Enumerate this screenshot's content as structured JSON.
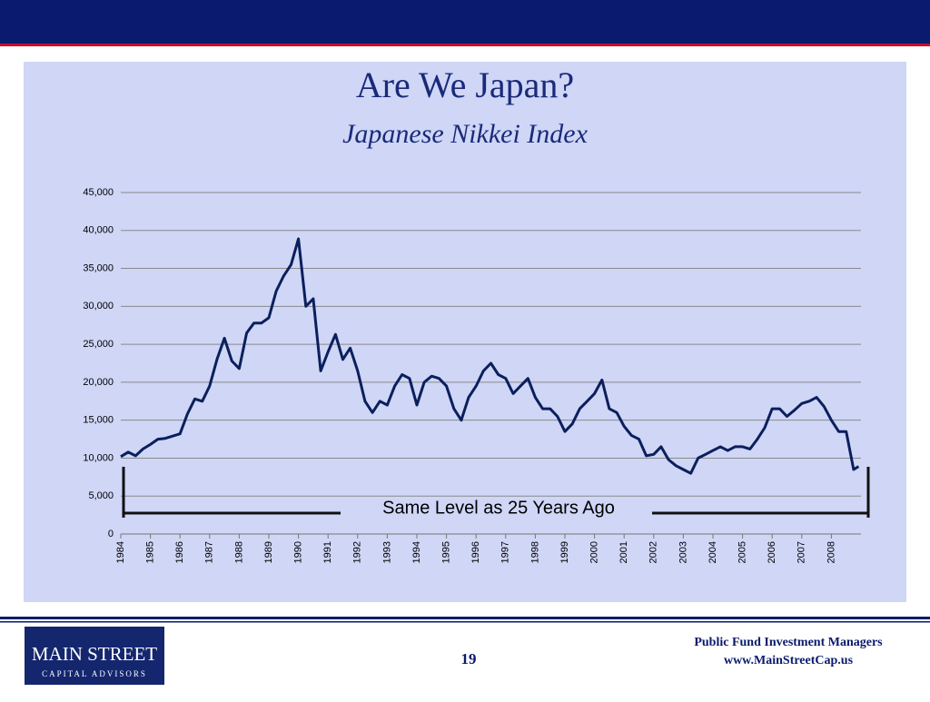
{
  "chart_data": {
    "type": "line",
    "title": "Are We Japan?",
    "subtitle": "Japanese Nikkei Index",
    "annotation": "Same Level as 25 Years Ago",
    "x": [
      1984,
      1984.25,
      1984.5,
      1984.75,
      1985,
      1985.25,
      1985.5,
      1985.75,
      1986,
      1986.25,
      1986.5,
      1986.75,
      1987,
      1987.25,
      1987.5,
      1987.75,
      1988,
      1988.25,
      1988.5,
      1988.75,
      1989,
      1989.25,
      1989.5,
      1989.75,
      1990,
      1990.25,
      1990.5,
      1990.75,
      1991,
      1991.25,
      1991.5,
      1991.75,
      1992,
      1992.25,
      1992.5,
      1992.75,
      1993,
      1993.25,
      1993.5,
      1993.75,
      1994,
      1994.25,
      1994.5,
      1994.75,
      1995,
      1995.25,
      1995.5,
      1995.75,
      1996,
      1996.25,
      1996.5,
      1996.75,
      1997,
      1997.25,
      1997.5,
      1997.75,
      1998,
      1998.25,
      1998.5,
      1998.75,
      1999,
      1999.25,
      1999.5,
      1999.75,
      2000,
      2000.25,
      2000.5,
      2000.75,
      2001,
      2001.25,
      2001.5,
      2001.75,
      2002,
      2002.25,
      2002.5,
      2002.75,
      2003,
      2003.25,
      2003.5,
      2003.75,
      2004,
      2004.25,
      2004.5,
      2004.75,
      2005,
      2005.25,
      2005.5,
      2005.75,
      2006,
      2006.25,
      2006.5,
      2006.75,
      2007,
      2007.25,
      2007.5,
      2007.75,
      2008,
      2008.25,
      2008.5,
      2008.75,
      2008.92
    ],
    "series": [
      {
        "name": "Nikkei",
        "color": "#0b1f5c",
        "values": [
          10200,
          10800,
          10300,
          11200,
          11800,
          12500,
          12600,
          12900,
          13200,
          15800,
          17800,
          17500,
          19500,
          23000,
          25800,
          22800,
          21800,
          26500,
          27800,
          27800,
          28500,
          32000,
          34000,
          35500,
          38900,
          30000,
          31000,
          21500,
          24000,
          26300,
          23000,
          24500,
          21500,
          17500,
          16000,
          17500,
          17000,
          19500,
          21000,
          20500,
          17000,
          20000,
          20800,
          20500,
          19500,
          16500,
          15000,
          18000,
          19500,
          21500,
          22500,
          21000,
          20500,
          18500,
          19500,
          20500,
          18000,
          16500,
          16500,
          15500,
          13500,
          14500,
          16500,
          17500,
          18500,
          20300,
          16500,
          16000,
          14200,
          13000,
          12500,
          10300,
          10500,
          11500,
          9800,
          9000,
          8500,
          8000,
          10000,
          10500,
          11000,
          11500,
          11000,
          11500,
          11500,
          11200,
          12500,
          14000,
          16500,
          16500,
          15500,
          16300,
          17200,
          17500,
          18000,
          16800,
          15000,
          13500,
          13500,
          8500,
          8900
        ]
      }
    ],
    "xlim": [
      1984,
      2009
    ],
    "xticks": [
      1984,
      1985,
      1986,
      1987,
      1988,
      1989,
      1990,
      1991,
      1992,
      1993,
      1994,
      1995,
      1996,
      1997,
      1998,
      1999,
      2000,
      2001,
      2002,
      2003,
      2004,
      2005,
      2006,
      2007,
      2008
    ],
    "ylim": [
      0,
      45000
    ],
    "yticks": [
      0,
      {
        "value": 5000,
        "label": "5,000"
      },
      {
        "value": 10000,
        "label": "10,000"
      },
      {
        "value": 15000,
        "label": "15,000"
      },
      {
        "value": 20000,
        "label": "20,000"
      },
      {
        "value": 25000,
        "label": "25,000"
      },
      {
        "value": 30000,
        "label": "30,000"
      },
      {
        "value": 35000,
        "label": "35,000"
      },
      {
        "value": 40000,
        "label": "40,000"
      },
      {
        "value": 45000,
        "label": "45,000"
      }
    ],
    "grid": true
  },
  "footer": {
    "page": "19",
    "company": "Public Fund Investment Managers",
    "website": "www.MainStreetCap.us",
    "logo_name": "MAIN STREET",
    "logo_tagline": "CAPITAL ADVISORS"
  }
}
